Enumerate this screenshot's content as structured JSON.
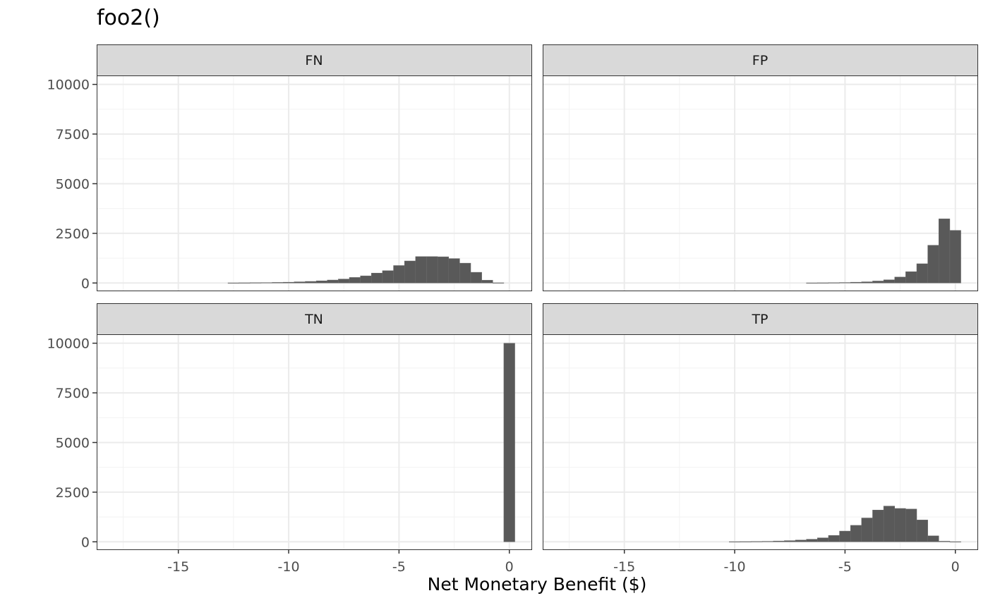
{
  "chart_data": {
    "type": "bar",
    "title": "foo2()",
    "xlabel": "Net Monetary Benefit ($)",
    "ylabel": "",
    "facet_layout": "2x2",
    "grid": true,
    "bar_color": "#595959",
    "strip_color": "#d9d9d9",
    "bin_width": 0.5,
    "xlim": [
      -18.7,
      1.0
    ],
    "ylim": [
      -380,
      10450
    ],
    "x_ticks": [
      -15,
      -10,
      -5,
      0
    ],
    "x_tick_labels": [
      "-15",
      "-10",
      "-5",
      "0"
    ],
    "y_ticks": [
      0,
      2500,
      5000,
      7500,
      10000
    ],
    "y_tick_labels": [
      "0",
      "2500",
      "5000",
      "7500",
      "10000"
    ],
    "panels": [
      {
        "label": "FN",
        "bin_centers": [
          -12.5,
          -12.0,
          -11.5,
          -11.0,
          -10.5,
          -10.0,
          -9.5,
          -9.0,
          -8.5,
          -8.0,
          -7.5,
          -7.0,
          -6.5,
          -6.0,
          -5.5,
          -5.0,
          -4.5,
          -4.0,
          -3.5,
          -3.0,
          -2.5,
          -2.0,
          -1.5,
          -1.0,
          -0.5
        ],
        "counts": [
          5,
          10,
          15,
          20,
          30,
          40,
          60,
          80,
          110,
          150,
          200,
          280,
          360,
          500,
          620,
          880,
          1110,
          1330,
          1330,
          1320,
          1230,
          1000,
          540,
          140,
          10
        ]
      },
      {
        "label": "FP",
        "bin_centers": [
          -6.5,
          -6.0,
          -5.5,
          -5.0,
          -4.5,
          -4.0,
          -3.5,
          -3.0,
          -2.5,
          -2.0,
          -1.5,
          -1.0,
          -0.5,
          0.0
        ],
        "counts": [
          5,
          10,
          15,
          25,
          40,
          60,
          100,
          160,
          300,
          570,
          970,
          1900,
          3230,
          2650
        ]
      },
      {
        "label": "TN",
        "bin_centers": [
          0.0
        ],
        "counts": [
          10000
        ]
      },
      {
        "label": "TP",
        "bin_centers": [
          -10.0,
          -9.5,
          -9.0,
          -8.5,
          -8.0,
          -7.5,
          -7.0,
          -6.5,
          -6.0,
          -5.5,
          -5.0,
          -4.5,
          -4.0,
          -3.5,
          -3.0,
          -2.5,
          -2.0,
          -1.5,
          -1.0,
          -0.5,
          0.0
        ],
        "counts": [
          5,
          10,
          15,
          25,
          40,
          60,
          90,
          130,
          200,
          320,
          540,
          830,
          1200,
          1600,
          1800,
          1680,
          1650,
          1100,
          300,
          30,
          5
        ]
      }
    ]
  }
}
